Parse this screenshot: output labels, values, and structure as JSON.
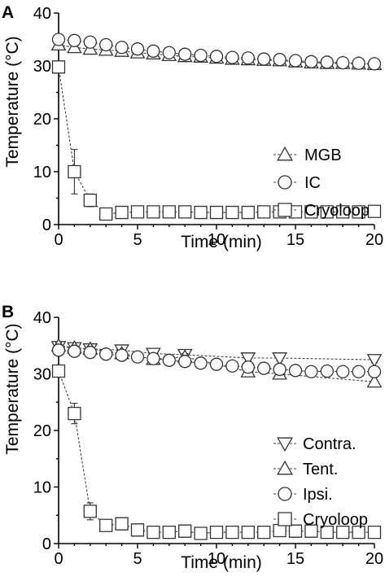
{
  "chart_data": [
    {
      "type": "line",
      "panel_label": "A",
      "xlabel": "Time (min)",
      "ylabel": "Temperature (°C)",
      "xlim": [
        0,
        20
      ],
      "ylim": [
        0,
        40
      ],
      "xticks": [
        0,
        5,
        10,
        15,
        20
      ],
      "yticks": [
        0,
        10,
        20,
        30,
        40
      ],
      "grid": false,
      "legend": "center-right",
      "series": [
        {
          "name": "MGB",
          "marker": "triangle-up",
          "x": [
            0,
            1,
            2,
            3,
            4,
            5,
            6,
            7,
            8,
            9,
            10,
            11,
            12,
            13,
            14,
            15,
            16,
            17,
            18,
            19,
            20
          ],
          "values": [
            34.0,
            33.5,
            33.2,
            33.0,
            32.8,
            32.5,
            32.3,
            32.0,
            31.8,
            31.7,
            31.5,
            31.3,
            31.2,
            31.1,
            31.0,
            30.8,
            30.6,
            30.5,
            30.5,
            30.4,
            30.3
          ],
          "errors": [
            0.4,
            0.4,
            0.4,
            0.4,
            0.4,
            0.4,
            0.4,
            0.4,
            0.4,
            0.4,
            0.4,
            0.4,
            0.4,
            0.4,
            0.4,
            0.4,
            0.4,
            0.4,
            0.4,
            0.4,
            0.4
          ]
        },
        {
          "name": "IC",
          "marker": "circle",
          "x": [
            0,
            1,
            2,
            3,
            4,
            5,
            6,
            7,
            8,
            9,
            10,
            11,
            12,
            13,
            14,
            15,
            16,
            17,
            18,
            19,
            20
          ],
          "values": [
            35.0,
            34.8,
            34.5,
            34.0,
            33.5,
            33.2,
            32.8,
            32.5,
            32.2,
            32.0,
            31.8,
            31.6,
            31.5,
            31.3,
            31.2,
            31.0,
            30.8,
            30.7,
            30.6,
            30.5,
            30.4
          ],
          "errors": [
            0.5,
            0.5,
            0.5,
            0.5,
            0.5,
            0.5,
            0.5,
            0.5,
            0.5,
            0.5,
            0.5,
            0.5,
            0.5,
            0.5,
            0.5,
            0.5,
            0.5,
            0.5,
            0.5,
            0.5,
            0.5
          ]
        },
        {
          "name": "Cryoloop",
          "marker": "square",
          "x": [
            0,
            1,
            2,
            3,
            4,
            5,
            6,
            7,
            8,
            9,
            10,
            11,
            12,
            13,
            14,
            15,
            16,
            17,
            18,
            19,
            20
          ],
          "values": [
            29.8,
            10.0,
            4.6,
            2.0,
            2.3,
            2.4,
            2.4,
            2.4,
            2.4,
            2.3,
            2.3,
            2.3,
            2.3,
            2.4,
            2.4,
            2.4,
            2.4,
            2.4,
            2.4,
            2.4,
            2.5
          ],
          "errors": [
            0.5,
            4.2,
            1.2,
            0.4,
            0.3,
            0.3,
            0.3,
            0.3,
            0.3,
            0.3,
            0.3,
            0.3,
            0.3,
            0.3,
            0.3,
            0.3,
            0.3,
            0.3,
            0.3,
            0.3,
            0.3
          ]
        }
      ]
    },
    {
      "type": "line",
      "panel_label": "B",
      "xlabel": "Time (min)",
      "ylabel": "Temperature (°C)",
      "xlim": [
        0,
        20
      ],
      "ylim": [
        0,
        40
      ],
      "xticks": [
        0,
        5,
        10,
        15,
        20
      ],
      "yticks": [
        0,
        10,
        20,
        30,
        40
      ],
      "grid": false,
      "legend": "lower-right",
      "series": [
        {
          "name": "Contra.",
          "marker": "triangle-down",
          "x": [
            0,
            1,
            2,
            4,
            6,
            8,
            12,
            14,
            20
          ],
          "values": [
            34.8,
            34.6,
            34.4,
            34.2,
            33.6,
            33.4,
            32.8,
            32.8,
            32.5
          ],
          "errors": [
            0.5,
            0.5,
            0.5,
            0.5,
            0.5,
            0.5,
            0.5,
            0.5,
            0.5
          ]
        },
        {
          "name": "Tent.",
          "marker": "triangle-up",
          "x": [
            0,
            1,
            2,
            4,
            6,
            8,
            12,
            14,
            20
          ],
          "values": [
            35.0,
            34.6,
            34.4,
            33.6,
            32.6,
            33.0,
            30.4,
            30.0,
            28.6
          ],
          "errors": [
            0.6,
            0.5,
            0.5,
            0.6,
            0.8,
            0.6,
            0.8,
            0.6,
            0.8
          ]
        },
        {
          "name": "Ipsi.",
          "marker": "circle",
          "x": [
            0,
            1,
            2,
            3,
            4,
            5,
            6,
            7,
            8,
            9,
            10,
            11,
            12,
            13,
            14,
            15,
            16,
            17,
            18,
            19,
            20
          ],
          "values": [
            34.2,
            34.0,
            33.8,
            33.5,
            33.3,
            33.0,
            32.7,
            32.4,
            32.2,
            31.9,
            31.7,
            31.4,
            31.2,
            31.0,
            30.8,
            30.6,
            30.4,
            30.5,
            30.4,
            30.4,
            30.4
          ],
          "errors": [
            0.6,
            0.6,
            0.6,
            0.6,
            0.6,
            0.6,
            0.6,
            0.6,
            0.6,
            0.6,
            0.6,
            0.6,
            0.6,
            0.6,
            0.6,
            0.6,
            0.6,
            0.6,
            0.6,
            0.6,
            0.6
          ]
        },
        {
          "name": "Cryoloop",
          "marker": "square",
          "x": [
            0,
            1,
            2,
            3,
            4,
            5,
            6,
            7,
            8,
            9,
            10,
            11,
            12,
            13,
            14,
            15,
            16,
            17,
            18,
            19,
            20
          ],
          "values": [
            30.5,
            23.0,
            5.7,
            3.2,
            3.5,
            2.4,
            2.0,
            2.0,
            2.2,
            1.8,
            2.0,
            2.0,
            2.0,
            2.0,
            2.3,
            2.2,
            2.2,
            2.0,
            2.0,
            2.0,
            2.0
          ],
          "errors": [
            0.6,
            1.8,
            1.5,
            0.8,
            0.8,
            0.4,
            0.3,
            0.3,
            0.3,
            0.3,
            0.3,
            0.3,
            0.3,
            0.3,
            0.3,
            0.3,
            0.3,
            0.3,
            0.3,
            0.3,
            0.3
          ]
        }
      ]
    }
  ]
}
